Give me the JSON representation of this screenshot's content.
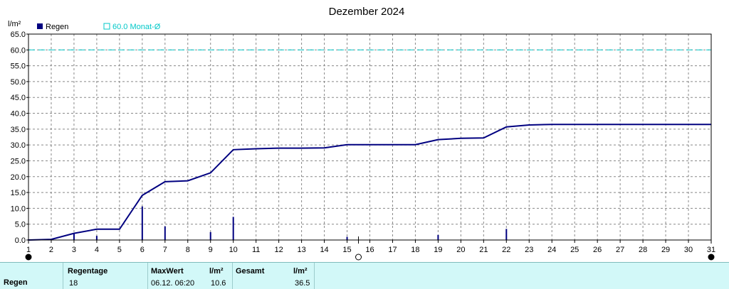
{
  "chart_data": {
    "type": "line",
    "title": "Dezember 2024",
    "ylabel": "l/m²",
    "xlabel": "",
    "ylim": [
      0,
      65
    ],
    "ytick_labels": [
      "0.0",
      "5.0",
      "10.0",
      "15.0",
      "20.0",
      "25.0",
      "30.0",
      "35.0",
      "40.0",
      "45.0",
      "50.0",
      "55.0",
      "60.0",
      "65.0"
    ],
    "xtick_labels": [
      "1",
      "2",
      "3",
      "4",
      "5",
      "6",
      "7",
      "8",
      "9",
      "10",
      "11",
      "12",
      "13",
      "14",
      "15",
      "16",
      "17",
      "18",
      "19",
      "20",
      "21",
      "22",
      "23",
      "24",
      "25",
      "26",
      "27",
      "28",
      "29",
      "30",
      "31"
    ],
    "grid": true,
    "legend": [
      {
        "label": "Regen",
        "color": "#000080"
      },
      {
        "label": "60.0 Monat-Ø",
        "color": "#00c8c8"
      }
    ],
    "reference_line": {
      "label": "60.0 Monat-Ø",
      "value": 60.0,
      "color": "#00c8c8"
    },
    "series": [
      {
        "name": "Regen",
        "kind": "cumulative",
        "color": "#000080",
        "x": [
          1,
          2,
          3,
          4,
          5,
          6,
          7,
          8,
          9,
          10,
          11,
          12,
          13,
          14,
          15,
          16,
          17,
          18,
          19,
          20,
          21,
          22,
          23,
          24,
          25,
          26,
          27,
          28,
          29,
          30,
          31
        ],
        "y": [
          0.0,
          0.2,
          2.1,
          3.4,
          3.4,
          14.1,
          18.4,
          18.7,
          21.2,
          28.5,
          28.8,
          29.0,
          29.0,
          29.1,
          30.1,
          30.1,
          30.1,
          30.1,
          31.7,
          32.1,
          32.2,
          35.7,
          36.3,
          36.5,
          36.5,
          36.5,
          36.5,
          36.5,
          36.5,
          36.5,
          36.5
        ]
      },
      {
        "name": "Regen",
        "kind": "daily",
        "color": "#000080",
        "x": [
          1,
          3,
          4,
          6,
          7,
          9,
          10,
          15,
          19,
          22
        ],
        "y": [
          0.2,
          1.9,
          1.3,
          10.6,
          4.3,
          2.5,
          7.3,
          1.0,
          1.6,
          3.5
        ]
      }
    ],
    "moon_phases": [
      {
        "day": 1,
        "phase": "new-moon"
      },
      {
        "day": 15.5,
        "phase": "full-moon"
      },
      {
        "day": 31,
        "phase": "new-moon"
      }
    ]
  },
  "stats": {
    "row_label": "Regen",
    "regentage_header": "Regentage",
    "regentage_value": "18",
    "maxwert_header": "MaxWert",
    "maxwert_value": "06.12.  06:20",
    "maxwert_unit_header": "l/m²",
    "maxwert_amount": "10.6",
    "gesamt_header": "Gesamt",
    "gesamt_unit_header": "l/m²",
    "gesamt_value": "36.5"
  }
}
